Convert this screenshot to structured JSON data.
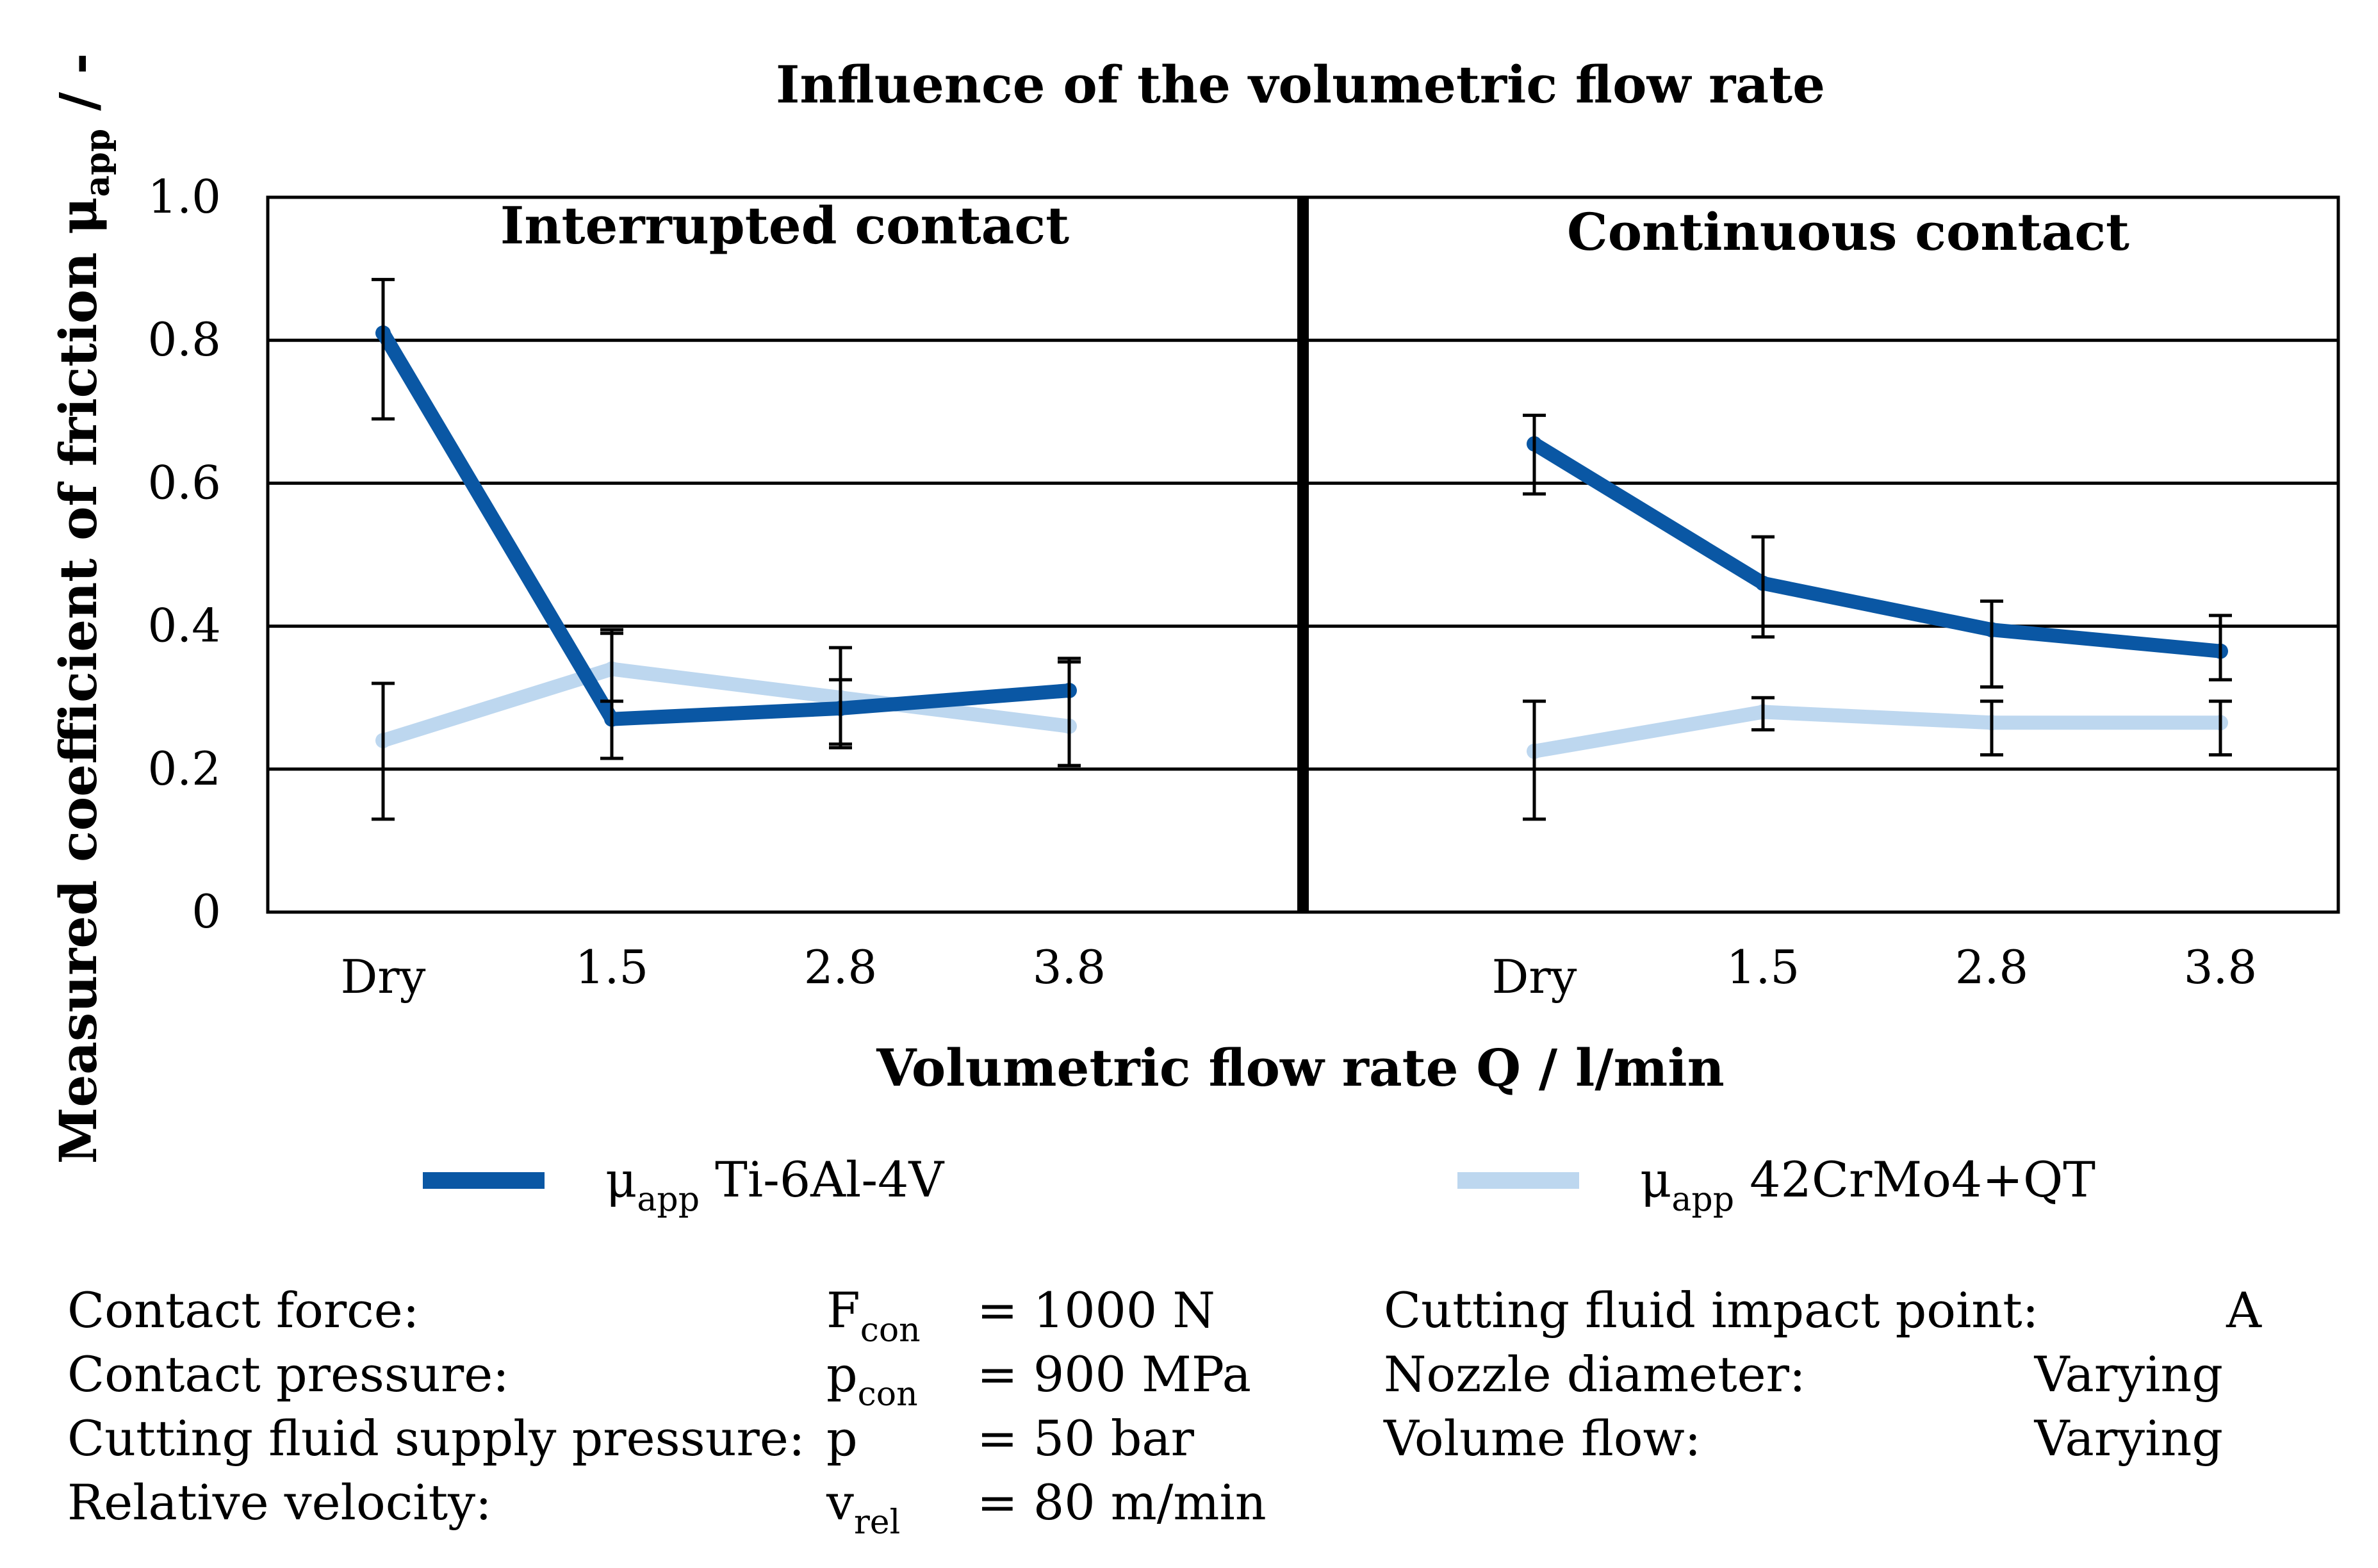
{
  "chart_data": {
    "type": "line",
    "title": "Influence of the volumetric flow rate",
    "xlabel": "Volumetric flow rate Q / l/min",
    "ylabel": {
      "main": "Measured coefficient of friction μ",
      "sub": "app",
      "suffix": " / -"
    },
    "ylim": [
      0,
      1.0
    ],
    "yticks": [
      "0",
      "0.2",
      "0.4",
      "0.6",
      "0.8",
      "1.0"
    ],
    "ytick_values": [
      0,
      0.2,
      0.4,
      0.6,
      0.8,
      1.0
    ],
    "categories": [
      "Dry",
      "1.5",
      "2.8",
      "3.8"
    ],
    "grid": true,
    "panels": [
      {
        "title": "Interrupted contact",
        "series": [
          {
            "name": "μapp Ti-6Al-4V",
            "color": "#0a57a4",
            "values": [
              0.81,
              0.27,
              0.285,
              0.31
            ],
            "err_low": [
              0.69,
              0.215,
              0.235,
              0.205
            ],
            "err_high": [
              0.885,
              0.39,
              0.37,
              0.35
            ]
          },
          {
            "name": "μapp 42CrMo4+QT",
            "color": "#bdd7ef",
            "values": [
              0.24,
              0.34,
              0.3,
              0.26
            ],
            "err_low": [
              0.13,
              0.295,
              0.23,
              0.205
            ],
            "err_high": [
              0.32,
              0.395,
              0.325,
              0.355
            ]
          }
        ]
      },
      {
        "title": "Continuous contact",
        "series": [
          {
            "name": "μapp Ti-6Al-4V",
            "color": "#0a57a4",
            "values": [
              0.655,
              0.46,
              0.395,
              0.365
            ],
            "err_low": [
              0.585,
              0.385,
              0.315,
              0.325
            ],
            "err_high": [
              0.695,
              0.525,
              0.435,
              0.415
            ]
          },
          {
            "name": "μapp 42CrMo4+QT",
            "color": "#bdd7ef",
            "values": [
              0.225,
              0.28,
              0.265,
              0.265
            ],
            "err_low": [
              0.13,
              0.255,
              0.22,
              0.22
            ],
            "err_high": [
              0.295,
              0.3,
              0.295,
              0.295
            ]
          }
        ]
      }
    ],
    "legend": [
      {
        "symbol": "μ",
        "sub": "app",
        "text": " Ti-6Al-4V",
        "color": "#0a57a4"
      },
      {
        "symbol": "μ",
        "sub": "app",
        "text": " 42CrMo4+QT",
        "color": "#bdd7ef"
      }
    ]
  },
  "parameters": {
    "left": [
      {
        "label": "Contact force:",
        "symbol": "F",
        "sub": "con",
        "value": "= 1000 N"
      },
      {
        "label": "Contact pressure:",
        "symbol": "p",
        "sub": "con",
        "value": "= 900 MPa"
      },
      {
        "label": "Cutting fluid supply pressure:",
        "symbol": "p",
        "sub": "",
        "value": "= 50 bar"
      },
      {
        "label": "Relative velocity:",
        "symbol": "v",
        "sub": "rel",
        "value": "= 80 m/min"
      }
    ],
    "right": [
      {
        "label": "Cutting fluid impact point:",
        "value": "A"
      },
      {
        "label": "Nozzle diameter:",
        "value": "Varying"
      },
      {
        "label": "Volume flow:",
        "value": "Varying"
      }
    ]
  }
}
